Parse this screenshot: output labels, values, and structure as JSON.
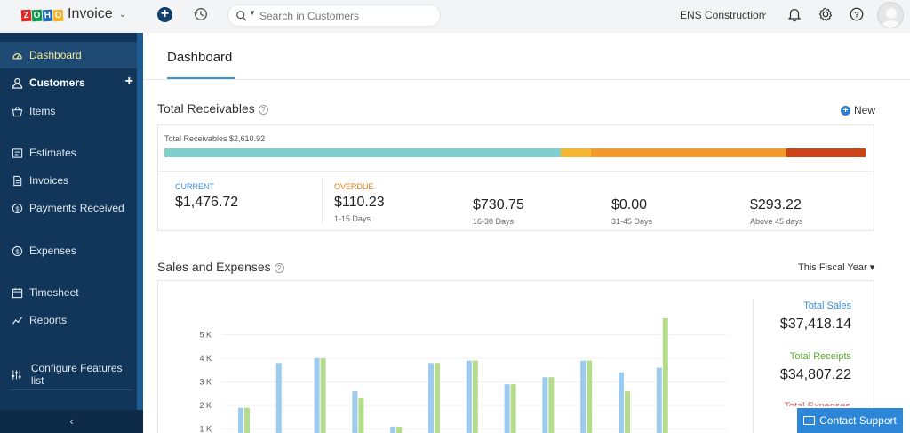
{
  "app": {
    "logo_letters": [
      "Z",
      "O",
      "H",
      "O"
    ],
    "logo_letter_colors": [
      "#e42527",
      "#089949",
      "#226db4",
      "#f9b21d"
    ],
    "product_name": "Invoice"
  },
  "topbar": {
    "search_placeholder": "Search in Customers",
    "organization": "ENS Construction",
    "icons": [
      "plus-circle-icon",
      "history-icon",
      "search-icon",
      "bell-icon",
      "gear-icon",
      "help-icon",
      "avatar"
    ]
  },
  "sidebar": {
    "items": [
      {
        "label": "Dashboard",
        "icon": "dashboard-icon",
        "active": true
      },
      {
        "label": "Customers",
        "icon": "user-icon",
        "bold": true
      },
      {
        "label": "Items",
        "icon": "basket-icon"
      },
      {
        "label": "Estimates",
        "icon": "estimate-icon"
      },
      {
        "label": "Invoices",
        "icon": "invoice-icon"
      },
      {
        "label": "Payments Received",
        "icon": "payment-icon"
      },
      {
        "label": "Expenses",
        "icon": "expense-icon"
      },
      {
        "label": "Timesheet",
        "icon": "timesheet-icon"
      },
      {
        "label": "Reports",
        "icon": "reports-icon"
      }
    ],
    "configure_label": "Configure Features list",
    "collapse_glyph": "‹"
  },
  "main": {
    "tab_label": "Dashboard",
    "receivables": {
      "title": "Total Receivables",
      "new_label": "New",
      "total_label": "Total Receivables $2,610.92",
      "bar_segments": [
        {
          "name": "current",
          "value": 1476.72,
          "color": "#7fd0cd"
        },
        {
          "name": "1-15",
          "value": 110.23,
          "color": "#f8b732"
        },
        {
          "name": "16-30",
          "value": 730.75,
          "color": "#f39a2a"
        },
        {
          "name": "31-45",
          "value": 0.0,
          "color": "#e0542b"
        },
        {
          "name": "45+",
          "value": 293.22,
          "color": "#cb4316"
        }
      ],
      "current": {
        "head": "CURRENT",
        "amount": "$1,476.72"
      },
      "overdue_head": "OVERDUE",
      "buckets": [
        {
          "amount": "$110.23",
          "sub": "1-15 Days"
        },
        {
          "amount": "$730.75",
          "sub": "16-30 Days"
        },
        {
          "amount": "$0.00",
          "sub": "31-45 Days"
        },
        {
          "amount": "$293.22",
          "sub": "Above 45 days"
        }
      ]
    },
    "sales": {
      "title": "Sales and Expenses",
      "period": "This Fiscal Year ▾",
      "totals": [
        {
          "label": "Total Sales",
          "value": "$37,418.14",
          "color": "#3a8fd8"
        },
        {
          "label": "Total Receipts",
          "value": "$34,807.22",
          "color": "#5aa830"
        },
        {
          "label": "Total Expenses",
          "value": "",
          "color": "#e06060"
        }
      ]
    }
  },
  "chart_data": {
    "type": "bar",
    "series": [
      {
        "name": "Sales",
        "color": "#9ccbee",
        "values": [
          1900,
          3800,
          4000,
          2600,
          1100,
          3800,
          3900,
          2900,
          3200,
          3900,
          3400,
          3600
        ]
      },
      {
        "name": "Receipts",
        "color": "#b4dc8c",
        "values": [
          1900,
          0,
          4000,
          2300,
          1100,
          3800,
          3900,
          2900,
          3200,
          3900,
          2600,
          5700
        ]
      }
    ],
    "yticks": [
      "1 K",
      "2 K",
      "3 K",
      "4 K",
      "5 K"
    ],
    "ylim": [
      0,
      6000
    ]
  },
  "support": {
    "label": "Contact Support"
  }
}
